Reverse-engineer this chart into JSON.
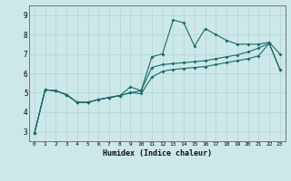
{
  "xlabel": "Humidex (Indice chaleur)",
  "background_color": "#cce8e8",
  "grid_color": "#b8d8d8",
  "line_color": "#1a6b6b",
  "x_ticks": [
    0,
    1,
    2,
    3,
    4,
    5,
    6,
    7,
    8,
    9,
    10,
    11,
    12,
    13,
    14,
    15,
    16,
    17,
    18,
    19,
    20,
    21,
    22,
    23
  ],
  "ylim": [
    2.5,
    9.5
  ],
  "xlim": [
    -0.5,
    23.5
  ],
  "yticks": [
    3,
    4,
    5,
    6,
    7,
    8,
    9
  ],
  "series1": [
    2.9,
    5.15,
    5.1,
    4.9,
    4.5,
    4.5,
    4.65,
    4.75,
    4.85,
    5.3,
    5.1,
    6.85,
    7.0,
    8.75,
    8.6,
    7.4,
    8.3,
    8.0,
    7.7,
    7.5,
    7.5,
    7.5,
    7.6,
    7.0
  ],
  "series2": [
    2.9,
    5.15,
    5.1,
    4.9,
    4.5,
    4.5,
    4.65,
    4.75,
    4.85,
    5.0,
    5.1,
    6.3,
    6.45,
    6.5,
    6.55,
    6.6,
    6.65,
    6.75,
    6.85,
    6.95,
    7.1,
    7.3,
    7.55,
    6.2
  ],
  "series3": [
    2.9,
    5.15,
    5.1,
    4.9,
    4.5,
    4.5,
    4.65,
    4.75,
    4.85,
    5.0,
    4.95,
    5.8,
    6.1,
    6.2,
    6.25,
    6.3,
    6.35,
    6.45,
    6.55,
    6.65,
    6.75,
    6.9,
    7.55,
    6.2
  ]
}
